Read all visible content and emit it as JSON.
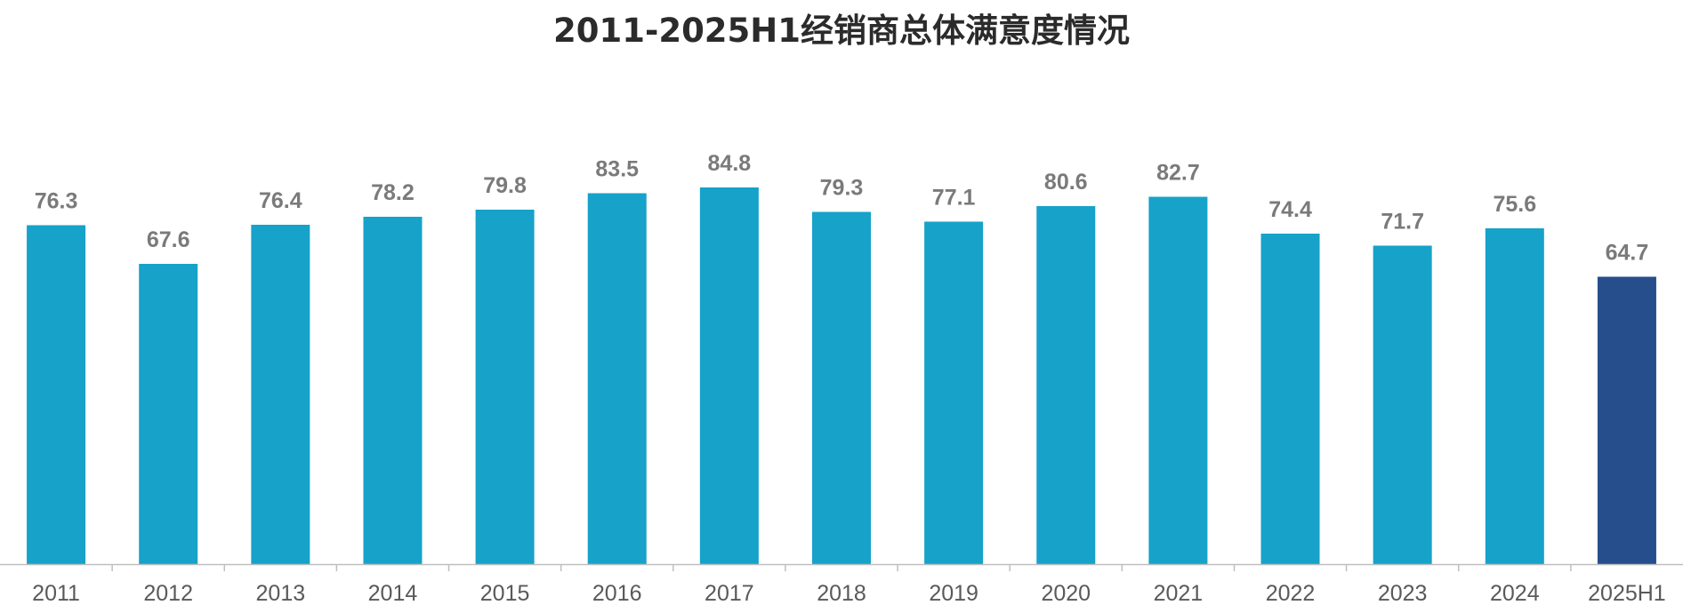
{
  "chart_data": {
    "type": "bar",
    "title": "2011-2025H1经销商总体满意度情况",
    "categories": [
      "2011",
      "2012",
      "2013",
      "2014",
      "2015",
      "2016",
      "2017",
      "2018",
      "2019",
      "2020",
      "2021",
      "2022",
      "2023",
      "2024",
      "2025H1"
    ],
    "values": [
      76.3,
      67.6,
      76.4,
      78.2,
      79.8,
      83.5,
      84.8,
      79.3,
      77.1,
      80.6,
      82.7,
      74.4,
      71.7,
      75.6,
      64.7
    ],
    "xlabel": "",
    "ylabel": "",
    "ylim": [
      0,
      85
    ],
    "grid": false,
    "data_labels": true,
    "colors": {
      "default_bar": "#16A2C9",
      "highlight_bar": "#264D8C",
      "highlight_category": "2025H1",
      "axis_line": "#BFBFBF",
      "value_label": "#7A7A7A",
      "tick_label": "#595959"
    }
  }
}
